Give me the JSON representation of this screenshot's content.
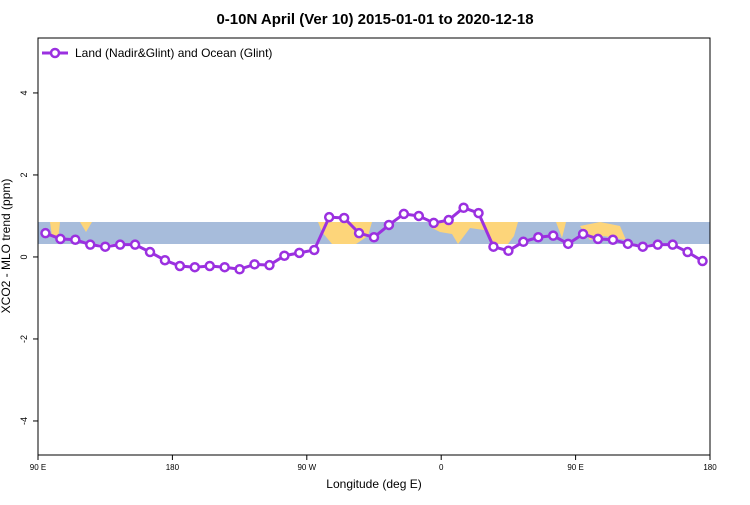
{
  "chart_data": {
    "type": "line",
    "title": "0-10N April (Ver 10)   2015-01-01 to 2020-12-18",
    "x_label": "Longitude (deg E)",
    "y_label": "XCO2 - MLO trend (ppm)",
    "x": [
      95,
      105,
      115,
      125,
      135,
      145,
      155,
      165,
      175,
      185,
      195,
      205,
      215,
      225,
      235,
      245,
      255,
      265,
      275,
      285,
      295,
      305,
      315,
      325,
      335,
      345,
      355,
      365,
      375,
      385,
      395,
      405,
      415,
      425,
      435,
      445,
      455,
      465,
      475,
      485,
      495,
      505,
      515,
      525,
      535
    ],
    "series": [
      {
        "name": "Land (Nadir&Glint) and Ocean (Glint)",
        "color": "#9b30e0",
        "values": [
          0.58,
          0.44,
          0.42,
          0.3,
          0.25,
          0.3,
          0.3,
          0.12,
          -0.08,
          -0.22,
          -0.25,
          -0.22,
          -0.25,
          -0.3,
          -0.18,
          -0.2,
          0.03,
          0.1,
          0.17,
          0.97,
          0.95,
          0.58,
          0.48,
          0.78,
          1.05,
          1.0,
          0.83,
          0.9,
          1.2,
          1.07,
          0.25,
          0.15,
          0.37,
          0.48,
          0.52,
          0.32,
          0.56,
          0.44,
          0.42,
          0.32,
          0.25,
          0.3,
          0.3,
          0.12,
          -0.1
        ]
      }
    ],
    "xlim": [
      90,
      540
    ],
    "xticks": [
      {
        "value": 90,
        "label": "90 E"
      },
      {
        "value": 180,
        "label": "180"
      },
      {
        "value": 270,
        "label": "90 W"
      },
      {
        "value": 360,
        "label": "0"
      },
      {
        "value": 450,
        "label": "90 E"
      },
      {
        "value": 540,
        "label": "180"
      }
    ],
    "ylim": [
      -4.83,
      5.34
    ],
    "yticks": [
      -4,
      -2,
      0,
      2,
      4
    ],
    "legend": "top-left"
  }
}
